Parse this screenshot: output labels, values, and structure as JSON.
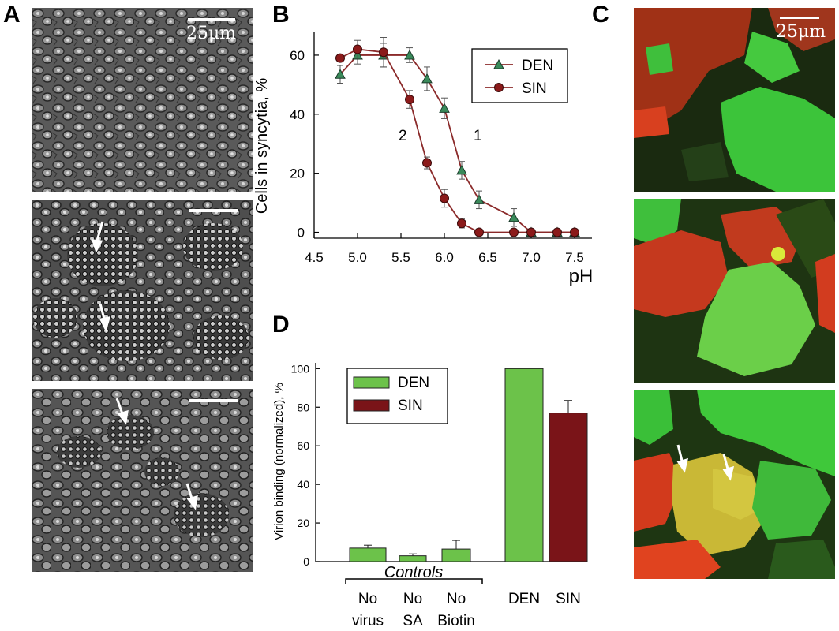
{
  "panels": {
    "a_letter": "A",
    "b_letter": "B",
    "c_letter": "C",
    "d_letter": "D"
  },
  "scale_bar_label": "25μm",
  "colors": {
    "den": "#3a8a5a",
    "sin": "#8b1a1a",
    "den_bar": "#6cc24a",
    "sin_bar": "#7a1418",
    "line": "#8b2a2a",
    "fluor_green": "#39c23a",
    "fluor_red": "#d8361e"
  },
  "chart_data": [
    {
      "type": "line",
      "panel": "B",
      "xlabel": "pH",
      "ylabel": "Cells in syncytia, %",
      "xlim": [
        4.5,
        7.7
      ],
      "ylim": [
        -2,
        68
      ],
      "xticks": [
        "4.5",
        "5.0",
        "5.5",
        "6.0",
        "6.5",
        "7.0",
        "7.5"
      ],
      "yticks": [
        "0",
        "20",
        "40",
        "60"
      ],
      "legend_position": "top-right",
      "series": [
        {
          "name": "DEN",
          "marker": "triangle",
          "curve_label": "1",
          "x": [
            4.8,
            5.0,
            5.3,
            5.6,
            5.8,
            6.0,
            6.2,
            6.4,
            6.8,
            7.0,
            7.3,
            7.5
          ],
          "y": [
            53.5,
            60,
            60,
            60,
            52,
            42,
            21,
            11,
            5,
            0,
            0,
            0
          ],
          "err": [
            3,
            3,
            4,
            2.5,
            4,
            3.5,
            3,
            3,
            3,
            0.5,
            0.5,
            0.5
          ]
        },
        {
          "name": "SIN",
          "marker": "circle",
          "curve_label": "2",
          "x": [
            4.8,
            5.0,
            5.3,
            5.6,
            5.8,
            6.0,
            6.2,
            6.4,
            6.8,
            7.0,
            7.3,
            7.5
          ],
          "y": [
            59,
            62,
            61,
            45,
            23.5,
            11.5,
            3,
            0,
            0,
            0,
            0,
            0
          ],
          "err": [
            1,
            3,
            5,
            3,
            2,
            3,
            1.5,
            0.5,
            0.5,
            0.5,
            0.5,
            0.5
          ]
        }
      ]
    },
    {
      "type": "bar",
      "panel": "D",
      "ylabel": "Virion binding (normalized), %",
      "ylim": [
        0,
        103
      ],
      "yticks": [
        "0",
        "20",
        "40",
        "60",
        "80",
        "100"
      ],
      "group_label": "Controls",
      "legend_position": "top-left",
      "legend": [
        "DEN",
        "SIN"
      ],
      "categories": [
        [
          "No",
          "virus"
        ],
        [
          "No",
          "SA"
        ],
        [
          "No",
          "Biotin"
        ],
        [
          "DEN"
        ],
        [
          "SIN"
        ]
      ],
      "values": [
        7,
        3,
        6.5,
        100,
        77
      ],
      "err": [
        1.5,
        1,
        4.5,
        0,
        6.5
      ],
      "series_of_bar": [
        "DEN",
        "DEN",
        "DEN",
        "DEN",
        "SIN"
      ]
    }
  ]
}
